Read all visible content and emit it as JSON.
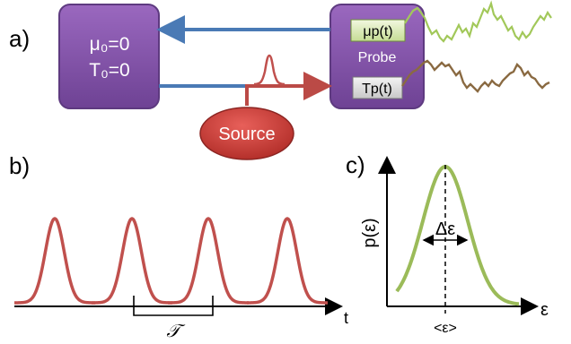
{
  "panel_a": {
    "label": "a)",
    "reservoir": {
      "line1": "μ₀=0",
      "line2": "T₀=0"
    },
    "probe": {
      "title": "Probe",
      "mu_label": "μp(t)",
      "t_label": "Tp(t)"
    },
    "source": {
      "label": "Source"
    },
    "colors": {
      "box_fill": "#7f4fa3",
      "box_stroke": "#5e3a80",
      "blue_arrow": "#4a7ab5",
      "red_arrow": "#bb4a46",
      "source_fill": "#c33a34",
      "mu_trace": "#a2c85a",
      "t_trace": "#8a6a42"
    }
  },
  "panel_b": {
    "label": "b)",
    "axis_label": "t",
    "period_label": "𝒯",
    "pulse_color": "#c0504d"
  },
  "panel_c": {
    "label": "c)",
    "y_label": "p(ε)",
    "x_label": "ε",
    "width_label": "Δε",
    "mean_label": "<ε>",
    "curve_color": "#9bbb59"
  }
}
